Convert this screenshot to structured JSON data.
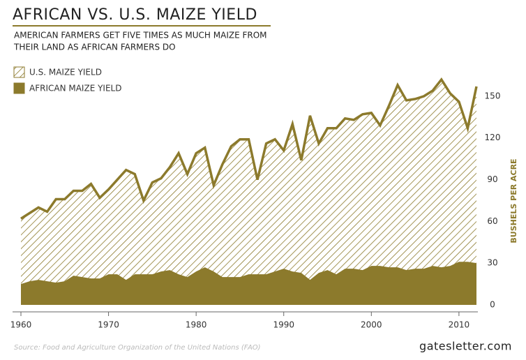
{
  "chart_data": {
    "type": "area",
    "title": "AFRICAN VS. U.S. MAIZE YIELD",
    "subtitle": [
      "AMERICAN FARMERS GET FIVE TIMES AS MUCH MAIZE FROM",
      "THEIR LAND AS AFRICAN FARMERS DO"
    ],
    "y_label": "BUSHELS PER ACRE",
    "source": "Source: Food and Agriculture Organization of the United Nations (FAO)",
    "credit": "gatesletter.com",
    "x": [
      1960,
      1961,
      1962,
      1963,
      1964,
      1965,
      1966,
      1967,
      1968,
      1969,
      1970,
      1971,
      1972,
      1973,
      1974,
      1975,
      1976,
      1977,
      1978,
      1979,
      1980,
      1981,
      1982,
      1983,
      1984,
      1985,
      1986,
      1987,
      1988,
      1989,
      1990,
      1991,
      1992,
      1993,
      1994,
      1995,
      1996,
      1997,
      1998,
      1999,
      2000,
      2001,
      2002,
      2003,
      2004,
      2005,
      2006,
      2007,
      2008,
      2009,
      2010,
      2011,
      2012
    ],
    "series": [
      {
        "name": "U.S. MAIZE YIELD",
        "color": "#8c7a2c",
        "pattern": "hatch",
        "values": [
          62,
          66,
          70,
          67,
          76,
          76,
          82,
          82,
          87,
          77,
          83,
          90,
          97,
          94,
          75,
          88,
          91,
          99,
          109,
          94,
          109,
          113,
          86,
          101,
          114,
          119,
          119,
          90,
          116,
          119,
          111,
          130,
          104,
          136,
          116,
          127,
          127,
          134,
          133,
          137,
          138,
          129,
          143,
          158,
          147,
          148,
          150,
          154,
          162,
          152,
          146,
          127,
          157
        ]
      },
      {
        "name": "AFRICAN MAIZE YIELD",
        "color": "#8c7a2c",
        "pattern": "solid",
        "values": [
          15,
          17,
          18,
          17,
          16,
          17,
          21,
          20,
          19,
          19,
          22,
          22,
          18,
          22,
          22,
          22,
          24,
          25,
          22,
          20,
          24,
          27,
          24,
          20,
          20,
          20,
          22,
          22,
          22,
          24,
          26,
          24,
          23,
          18,
          23,
          25,
          22,
          26,
          26,
          25,
          28,
          28,
          27,
          27,
          25,
          26,
          26,
          28,
          27,
          28,
          31,
          31,
          30
        ]
      }
    ],
    "xlim": [
      1960,
      2012
    ],
    "xticks": [
      1960,
      1970,
      1980,
      1990,
      2000,
      2010
    ],
    "ylim": [
      0,
      165
    ],
    "yticks": [
      0,
      30,
      60,
      90,
      120,
      150
    ]
  }
}
